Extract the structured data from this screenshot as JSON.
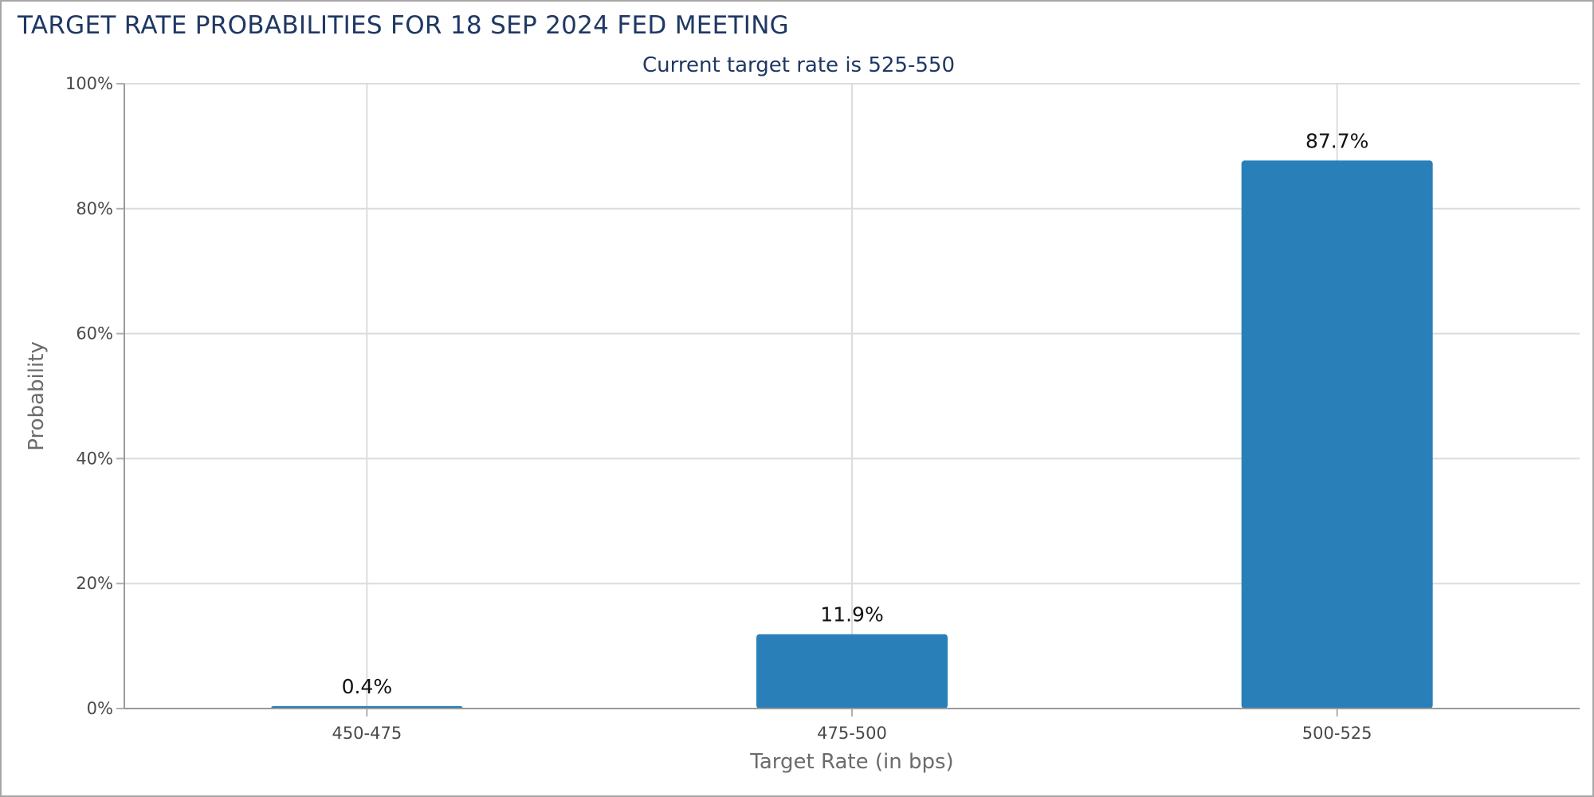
{
  "chart_data": {
    "type": "bar",
    "title": "TARGET RATE PROBABILITIES FOR 18 SEP 2024 FED MEETING",
    "subtitle": "Current target rate is 525-550",
    "categories": [
      "450-475",
      "475-500",
      "500-525"
    ],
    "values": [
      0.4,
      11.9,
      87.7
    ],
    "data_labels": [
      "0.4%",
      "11.9%",
      "87.7%"
    ],
    "xlabel": "Target Rate (in bps)",
    "ylabel": "Probability",
    "ylim": [
      0,
      100
    ],
    "yticks": [
      0,
      20,
      40,
      60,
      80,
      100
    ],
    "ytick_labels": [
      "0%",
      "20%",
      "40%",
      "60%",
      "80%",
      "100%"
    ],
    "grid": true,
    "legend": "none",
    "bar_color": "#2980b9"
  }
}
